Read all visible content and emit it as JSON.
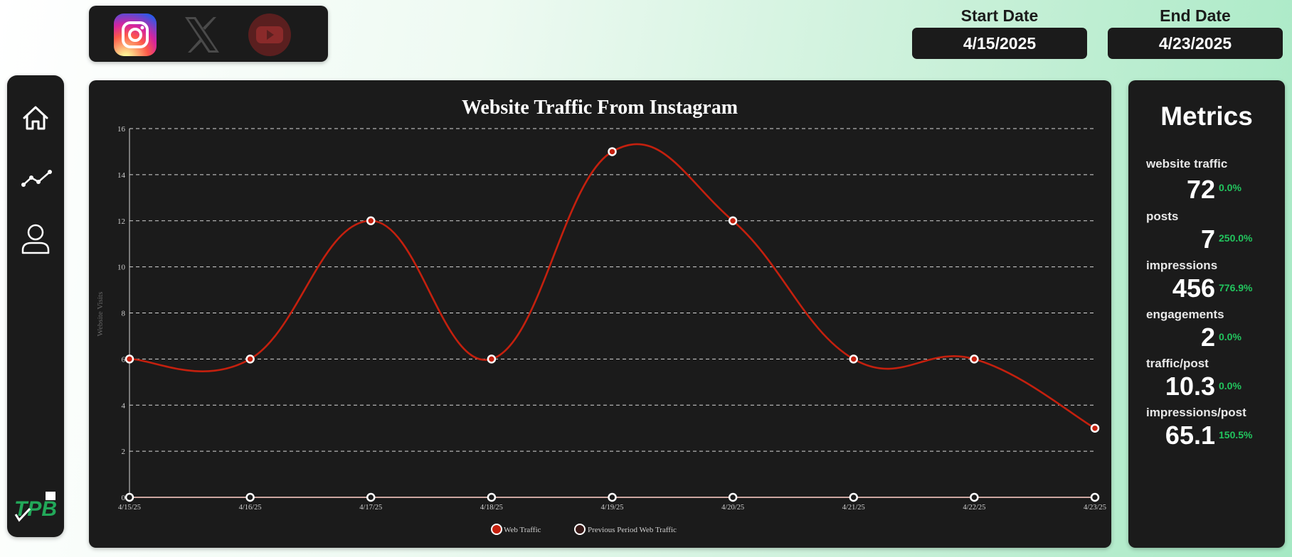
{
  "social": {
    "platforms": [
      {
        "name": "Instagram",
        "state": "selected"
      },
      {
        "name": "X",
        "state": "inactive"
      },
      {
        "name": "YouTube",
        "state": "inactive"
      }
    ]
  },
  "dates": {
    "start_label": "Start Date",
    "start_value": "4/15/2025",
    "end_label": "End Date",
    "end_value": "4/23/2025"
  },
  "sidebar": {
    "items": [
      {
        "icon": "home-icon"
      },
      {
        "icon": "trend-line-icon"
      },
      {
        "icon": "user-icon"
      }
    ],
    "logo": "TPB"
  },
  "chart_data": {
    "type": "line",
    "title": "Website Traffic From Instagram",
    "xlabel": "",
    "ylabel": "Website Visits",
    "categories": [
      "4/15/25",
      "4/16/25",
      "4/17/25",
      "4/18/25",
      "4/19/25",
      "4/20/25",
      "4/21/25",
      "4/22/25",
      "4/23/25"
    ],
    "ylim": [
      0,
      16
    ],
    "yticks": [
      0,
      2,
      4,
      6,
      8,
      10,
      12,
      14,
      16
    ],
    "grid": true,
    "legend_position": "bottom",
    "series": [
      {
        "name": "Web Traffic",
        "values": [
          6,
          6,
          12,
          6,
          15,
          12,
          6,
          6,
          3
        ],
        "color": "#c4200e"
      },
      {
        "name": "Previous Period Web Traffic",
        "values": [
          0,
          0,
          0,
          0,
          0,
          0,
          0,
          0,
          0
        ],
        "color": "#f6c6bf"
      }
    ]
  },
  "metrics": {
    "title": "Metrics",
    "items": [
      {
        "label": "website traffic",
        "value": "72",
        "change": "0.0%"
      },
      {
        "label": "posts",
        "value": "7",
        "change": "250.0%"
      },
      {
        "label": "impressions",
        "value": "456",
        "change": "776.9%"
      },
      {
        "label": "engagements",
        "value": "2",
        "change": "0.0%"
      },
      {
        "label": "traffic/post",
        "value": "10.3",
        "change": "0.0%"
      },
      {
        "label": "impressions/post",
        "value": "65.1",
        "change": "150.5%"
      }
    ]
  },
  "colors": {
    "panel": "#1b1b1b",
    "accent_red": "#c4200e",
    "positive_green": "#22c55e"
  }
}
